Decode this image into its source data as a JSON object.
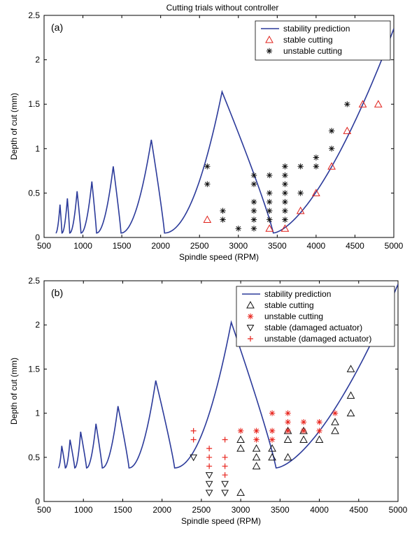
{
  "figure_title": "Cutting trials without controller",
  "colors": {
    "curve": "#2b3a9a",
    "stable_a": "#e0201a",
    "unstable_a": "#111111",
    "stable_b": "#111111",
    "unstable_b": "#e8261f",
    "damaged_stable": "#111111",
    "damaged_unstable": "#e8261f",
    "axis": "#000000"
  },
  "chart_data": [
    {
      "id": "a",
      "type": "scatter",
      "panel_label": "(a)",
      "title": "Cutting trials without controller",
      "xlabel": "Spindle speed (RPM)",
      "ylabel": "Depth of cut (mm)",
      "xlim": [
        500,
        5000
      ],
      "ylim": [
        0,
        2.5
      ],
      "xticks": [
        500,
        1000,
        1500,
        2000,
        2500,
        3000,
        3500,
        4000,
        4500,
        5000
      ],
      "yticks": [
        0,
        0.5,
        1,
        1.5,
        2,
        2.5
      ],
      "legend_position": "top-right",
      "curve": {
        "name": "stability prediction",
        "lobes": [
          {
            "start": 650,
            "peak": 705,
            "peak_y": 0.37,
            "end": 730
          },
          {
            "start": 730,
            "peak": 800,
            "peak_y": 0.44,
            "end": 830
          },
          {
            "start": 830,
            "peak": 925,
            "peak_y": 0.52,
            "end": 975
          },
          {
            "start": 975,
            "peak": 1115,
            "peak_y": 0.63,
            "end": 1175
          },
          {
            "start": 1175,
            "peak": 1390,
            "peak_y": 0.8,
            "end": 1490
          },
          {
            "start": 1490,
            "peak": 1880,
            "peak_y": 1.1,
            "end": 2050
          },
          {
            "start": 2050,
            "peak": 2790,
            "peak_y": 1.64,
            "end": 3450
          }
        ],
        "final_branch": {
          "start": 3450,
          "end": 5000,
          "end_y": 2.35
        },
        "lobe_min_y": 0.05
      },
      "series": [
        {
          "name": "stable cutting",
          "marker": "triangle-up",
          "color_key": "stable_a",
          "points": [
            [
              2600,
              0.2
            ],
            [
              3400,
              0.1
            ],
            [
              3600,
              0.1
            ],
            [
              3800,
              0.3
            ],
            [
              4000,
              0.5
            ],
            [
              4200,
              0.8
            ],
            [
              4400,
              1.2
            ],
            [
              4600,
              1.5
            ],
            [
              4800,
              1.5
            ]
          ]
        },
        {
          "name": "unstable cutting",
          "marker": "asterisk",
          "color_key": "unstable_a",
          "points": [
            [
              2600,
              0.6
            ],
            [
              2600,
              0.8
            ],
            [
              2800,
              0.2
            ],
            [
              2800,
              0.3
            ],
            [
              3000,
              0.1
            ],
            [
              3200,
              0.1
            ],
            [
              3200,
              0.2
            ],
            [
              3200,
              0.3
            ],
            [
              3200,
              0.4
            ],
            [
              3200,
              0.6
            ],
            [
              3200,
              0.7
            ],
            [
              3400,
              0.2
            ],
            [
              3400,
              0.3
            ],
            [
              3400,
              0.4
            ],
            [
              3400,
              0.5
            ],
            [
              3400,
              0.7
            ],
            [
              3600,
              0.2
            ],
            [
              3600,
              0.3
            ],
            [
              3600,
              0.4
            ],
            [
              3600,
              0.5
            ],
            [
              3600,
              0.6
            ],
            [
              3600,
              0.7
            ],
            [
              3600,
              0.8
            ],
            [
              3800,
              0.5
            ],
            [
              3800,
              0.8
            ],
            [
              4000,
              0.8
            ],
            [
              4000,
              0.9
            ],
            [
              4200,
              1.0
            ],
            [
              4200,
              1.2
            ],
            [
              4400,
              1.5
            ]
          ]
        }
      ]
    },
    {
      "id": "b",
      "type": "scatter",
      "panel_label": "(b)",
      "title": "",
      "xlabel": "Spindle speed (RPM)",
      "ylabel": "Depth of cut (mm)",
      "xlim": [
        500,
        5000
      ],
      "ylim": [
        0,
        2.5
      ],
      "xticks": [
        500,
        1000,
        1500,
        2000,
        2500,
        3000,
        3500,
        4000,
        4500,
        5000
      ],
      "yticks": [
        0,
        0.5,
        1,
        1.5,
        2,
        2.5
      ],
      "legend_position": "top-right",
      "curve": {
        "name": "stability prediction",
        "lobes": [
          {
            "start": 680,
            "peak": 725,
            "peak_y": 0.63,
            "end": 770
          },
          {
            "start": 770,
            "peak": 830,
            "peak_y": 0.7,
            "end": 890
          },
          {
            "start": 890,
            "peak": 965,
            "peak_y": 0.79,
            "end": 1040
          },
          {
            "start": 1040,
            "peak": 1160,
            "peak_y": 0.88,
            "end": 1240
          },
          {
            "start": 1240,
            "peak": 1440,
            "peak_y": 1.08,
            "end": 1580
          },
          {
            "start": 1580,
            "peak": 1920,
            "peak_y": 1.37,
            "end": 2160
          },
          {
            "start": 2160,
            "peak": 2880,
            "peak_y": 2.03,
            "end": 3450
          }
        ],
        "final_branch": {
          "start": 3450,
          "end": 5000,
          "end_y": 2.46
        },
        "lobe_min_y": 0.38
      },
      "series": [
        {
          "name": "stable cutting",
          "marker": "triangle-up",
          "color_key": "stable_b",
          "points": [
            [
              3000,
              0.1
            ],
            [
              3000,
              0.6
            ],
            [
              3000,
              0.7
            ],
            [
              3200,
              0.4
            ],
            [
              3200,
              0.5
            ],
            [
              3200,
              0.6
            ],
            [
              3400,
              0.5
            ],
            [
              3400,
              0.6
            ],
            [
              3600,
              0.5
            ],
            [
              3600,
              0.7
            ],
            [
              3600,
              0.8
            ],
            [
              3800,
              0.7
            ],
            [
              3800,
              0.8
            ],
            [
              4000,
              0.7
            ],
            [
              4200,
              0.8
            ],
            [
              4200,
              0.9
            ],
            [
              4400,
              1.0
            ],
            [
              4400,
              1.2
            ],
            [
              4400,
              1.5
            ]
          ]
        },
        {
          "name": "unstable cutting",
          "marker": "asterisk",
          "color_key": "unstable_b",
          "points": [
            [
              3000,
              0.8
            ],
            [
              3200,
              0.7
            ],
            [
              3200,
              0.8
            ],
            [
              3400,
              0.7
            ],
            [
              3400,
              0.8
            ],
            [
              3400,
              1.0
            ],
            [
              3600,
              0.8
            ],
            [
              3600,
              0.9
            ],
            [
              3600,
              1.0
            ],
            [
              3800,
              0.8
            ],
            [
              3800,
              0.9
            ],
            [
              4000,
              0.8
            ],
            [
              4000,
              0.9
            ],
            [
              4200,
              1.0
            ]
          ]
        },
        {
          "name": "stable (damaged actuator)",
          "marker": "triangle-down",
          "color_key": "damaged_stable",
          "points": [
            [
              2400,
              0.5
            ],
            [
              2600,
              0.1
            ],
            [
              2600,
              0.2
            ],
            [
              2600,
              0.3
            ],
            [
              2800,
              0.1
            ],
            [
              2800,
              0.2
            ]
          ]
        },
        {
          "name": "unstable (damaged actuator)",
          "marker": "plus",
          "color_key": "damaged_unstable",
          "points": [
            [
              2400,
              0.7
            ],
            [
              2400,
              0.8
            ],
            [
              2600,
              0.4
            ],
            [
              2600,
              0.5
            ],
            [
              2600,
              0.6
            ],
            [
              2800,
              0.3
            ],
            [
              2800,
              0.4
            ],
            [
              2800,
              0.5
            ],
            [
              2800,
              0.7
            ]
          ]
        }
      ]
    }
  ]
}
